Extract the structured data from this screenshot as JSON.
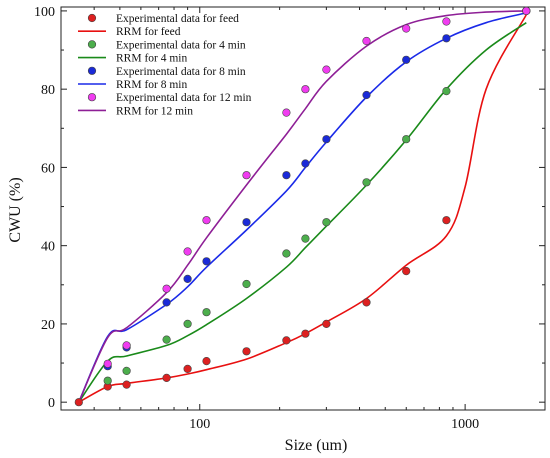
{
  "chart_data": {
    "type": "scatter",
    "xlabel": "Size (um)",
    "ylabel": "CWU (%)",
    "xscale": "log",
    "xlim": [
      30,
      2000
    ],
    "ylim": [
      -2,
      101
    ],
    "xticks": [
      100,
      1000
    ],
    "xtick_labels": [
      "100",
      "1000"
    ],
    "yticks": [
      0,
      20,
      40,
      60,
      80,
      100
    ],
    "ytick_labels": [
      "0",
      "20",
      "40",
      "60",
      "80",
      "100"
    ],
    "grid": false,
    "legend_position": "top-left",
    "series": [
      {
        "name": "Experimental data for feed",
        "kind": "scatter",
        "color": "#dd2020",
        "points": [
          [
            35,
            0
          ],
          [
            45,
            4
          ],
          [
            53,
            4.5
          ],
          [
            75,
            6.2
          ],
          [
            90,
            8.5
          ],
          [
            106,
            10.5
          ],
          [
            150,
            13
          ],
          [
            212,
            15.8
          ],
          [
            250,
            17.5
          ],
          [
            300,
            20
          ],
          [
            425,
            25.5
          ],
          [
            600,
            33.5
          ],
          [
            850,
            46.5
          ],
          [
            1700,
            100
          ]
        ]
      },
      {
        "name": "RRM for feed",
        "kind": "line",
        "color": "#e81010",
        "points": [
          [
            35,
            0
          ],
          [
            45,
            4
          ],
          [
            53,
            4.8
          ],
          [
            75,
            6.2
          ],
          [
            90,
            7.2
          ],
          [
            106,
            8.3
          ],
          [
            150,
            11
          ],
          [
            212,
            15.2
          ],
          [
            250,
            17.5
          ],
          [
            300,
            20.5
          ],
          [
            425,
            26.5
          ],
          [
            600,
            35
          ],
          [
            850,
            42.5
          ],
          [
            1000,
            55
          ],
          [
            1200,
            80
          ],
          [
            1700,
            99
          ]
        ]
      },
      {
        "name": "Experimental data for 4 min",
        "kind": "scatter",
        "color": "#4cae4c",
        "points": [
          [
            45,
            5.5
          ],
          [
            53,
            8
          ],
          [
            75,
            16
          ],
          [
            90,
            20
          ],
          [
            106,
            23
          ],
          [
            150,
            30.2
          ],
          [
            212,
            38
          ],
          [
            250,
            41.8
          ],
          [
            300,
            46
          ],
          [
            425,
            56.2
          ],
          [
            600,
            67.2
          ],
          [
            850,
            79.5
          ],
          [
            1700,
            100
          ]
        ]
      },
      {
        "name": "RRM for 4 min",
        "kind": "line",
        "color": "#1a8a1a",
        "points": [
          [
            35,
            0
          ],
          [
            45,
            10.5
          ],
          [
            53,
            11.8
          ],
          [
            75,
            14.5
          ],
          [
            90,
            17
          ],
          [
            106,
            19.8
          ],
          [
            150,
            26.5
          ],
          [
            212,
            34.5
          ],
          [
            250,
            39.5
          ],
          [
            300,
            45
          ],
          [
            425,
            55.5
          ],
          [
            600,
            67
          ],
          [
            850,
            80
          ],
          [
            1200,
            90
          ],
          [
            1700,
            97
          ]
        ]
      },
      {
        "name": "Experimental data for 8 min",
        "kind": "scatter",
        "color": "#1a2ad8",
        "points": [
          [
            45,
            9.2
          ],
          [
            53,
            14
          ],
          [
            75,
            25.5
          ],
          [
            90,
            31.5
          ],
          [
            106,
            36
          ],
          [
            150,
            46
          ],
          [
            212,
            58
          ],
          [
            250,
            61
          ],
          [
            300,
            67.2
          ],
          [
            425,
            78.5
          ],
          [
            600,
            87.5
          ],
          [
            850,
            93
          ],
          [
            1700,
            100
          ]
        ]
      },
      {
        "name": "RRM for 8 min",
        "kind": "line",
        "color": "#1a2ae8",
        "points": [
          [
            35,
            0
          ],
          [
            45,
            16.8
          ],
          [
            53,
            18.5
          ],
          [
            75,
            25
          ],
          [
            90,
            29.5
          ],
          [
            106,
            34.5
          ],
          [
            150,
            44
          ],
          [
            212,
            54
          ],
          [
            250,
            60
          ],
          [
            300,
            66.5
          ],
          [
            425,
            78
          ],
          [
            600,
            87
          ],
          [
            850,
            93
          ],
          [
            1200,
            97
          ],
          [
            1700,
            99.5
          ]
        ]
      },
      {
        "name": "Experimental data for 12 min",
        "kind": "scatter",
        "color": "#f03cf0",
        "points": [
          [
            45,
            9.8
          ],
          [
            53,
            14.5
          ],
          [
            75,
            29
          ],
          [
            90,
            38.5
          ],
          [
            106,
            46.5
          ],
          [
            150,
            58
          ],
          [
            212,
            74
          ],
          [
            250,
            80
          ],
          [
            300,
            85
          ],
          [
            425,
            92.3
          ],
          [
            600,
            95.5
          ],
          [
            850,
            97.3
          ],
          [
            1700,
            100
          ]
        ]
      },
      {
        "name": "RRM for 12 min",
        "kind": "line",
        "color": "#8e1f96",
        "points": [
          [
            35,
            0
          ],
          [
            45,
            16.5
          ],
          [
            53,
            19
          ],
          [
            75,
            28
          ],
          [
            90,
            35
          ],
          [
            106,
            42
          ],
          [
            150,
            55.5
          ],
          [
            212,
            68.5
          ],
          [
            250,
            75
          ],
          [
            300,
            82
          ],
          [
            425,
            91
          ],
          [
            600,
            96.5
          ],
          [
            850,
            98.8
          ],
          [
            1200,
            99.7
          ],
          [
            1700,
            100
          ]
        ]
      }
    ]
  }
}
